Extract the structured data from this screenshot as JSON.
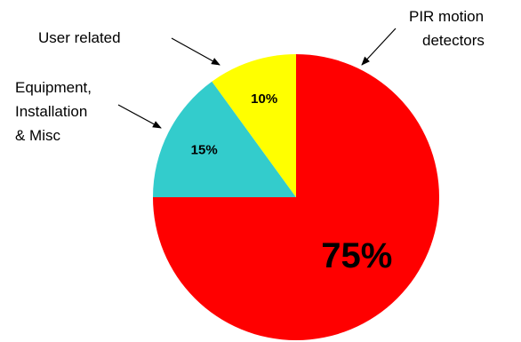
{
  "chart_data": {
    "type": "pie",
    "title": "",
    "slices": [
      {
        "label": "PIR motion detectors",
        "value": 75,
        "value_label": "75%",
        "color": "#ff0000"
      },
      {
        "label": "Equipment, Installation & Misc",
        "value": 15,
        "value_label": "15%",
        "color": "#33cccc"
      },
      {
        "label": "User related",
        "value": 10,
        "value_label": "10%",
        "color": "#ffff00"
      }
    ],
    "labels": {
      "pir_line1": "PIR motion",
      "pir_line2": "detectors",
      "equip_line1": "Equipment,",
      "equip_line2": "Installation",
      "equip_line3": "& Misc",
      "user": "User related"
    },
    "start_angle": "12 o'clock",
    "direction": "clockwise",
    "legend": "none (callout labels with arrows)"
  }
}
